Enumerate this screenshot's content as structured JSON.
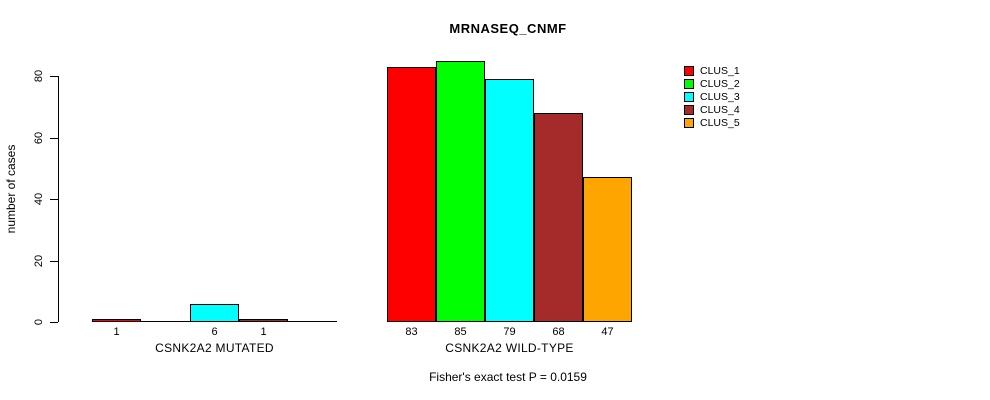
{
  "title": "MRNASEQ_CNMF",
  "y_axis_label": "number of cases",
  "footer": "Fisher's exact test P = 0.0159",
  "chart_data": {
    "type": "bar",
    "title": "MRNASEQ_CNMF",
    "xlabel": "",
    "ylabel": "number of cases",
    "ylim": [
      0,
      80
    ],
    "yticks": [
      0,
      20,
      40,
      60,
      80
    ],
    "grid": false,
    "legend_position": "top-right",
    "categories": [
      "CSNK2A2 MUTATED",
      "CSNK2A2 WILD-TYPE"
    ],
    "series": [
      {
        "name": "CLUS_1",
        "color": "#FF0000",
        "values": [
          1,
          83
        ]
      },
      {
        "name": "CLUS_2",
        "color": "#00FF00",
        "values": [
          0,
          85
        ]
      },
      {
        "name": "CLUS_3",
        "color": "#00FFFF",
        "values": [
          6,
          79
        ]
      },
      {
        "name": "CLUS_4",
        "color": "#A52A2A",
        "values": [
          1,
          68
        ]
      },
      {
        "name": "CLUS_5",
        "color": "#FFA500",
        "values": [
          0,
          47
        ]
      }
    ],
    "bar_value_labels": [
      [
        "1",
        "",
        "6",
        "1",
        ""
      ],
      [
        "83",
        "85",
        "79",
        "68",
        "47"
      ]
    ],
    "annotation": "Fisher's exact test P = 0.0159"
  }
}
